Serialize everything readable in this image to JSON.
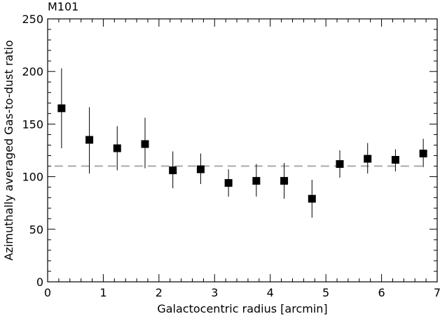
{
  "chart_data": {
    "type": "scatter",
    "title": "M101",
    "xlabel": "Galactocentric radius [arcmin]",
    "ylabel": "Azimuthally averaged Gas-to-dust ratio",
    "xlim": [
      0,
      7
    ],
    "ylim": [
      0,
      250
    ],
    "xticks": [
      "0",
      "1",
      "2",
      "3",
      "4",
      "5",
      "6",
      "7"
    ],
    "yticks": [
      "0",
      "50",
      "100",
      "150",
      "200",
      "250"
    ],
    "grid": false,
    "reference_line": {
      "y": 110,
      "style": "dashed",
      "color": "#aaaaaa"
    },
    "series": [
      {
        "marker": "square",
        "color": "#000000",
        "x": [
          0.25,
          0.75,
          1.25,
          1.75,
          2.25,
          2.75,
          3.25,
          3.75,
          4.25,
          4.75,
          5.25,
          5.75,
          6.25,
          6.75
        ],
        "y": [
          165,
          135,
          127,
          131,
          106,
          107,
          94,
          96,
          96,
          79,
          112,
          117,
          116,
          122
        ],
        "y_low": [
          127,
          103,
          106,
          108,
          89,
          93,
          81,
          81,
          79,
          61,
          99,
          103,
          105,
          109
        ],
        "y_high": [
          203,
          166,
          148,
          156,
          124,
          122,
          107,
          112,
          113,
          97,
          125,
          132,
          126,
          136
        ]
      }
    ]
  }
}
